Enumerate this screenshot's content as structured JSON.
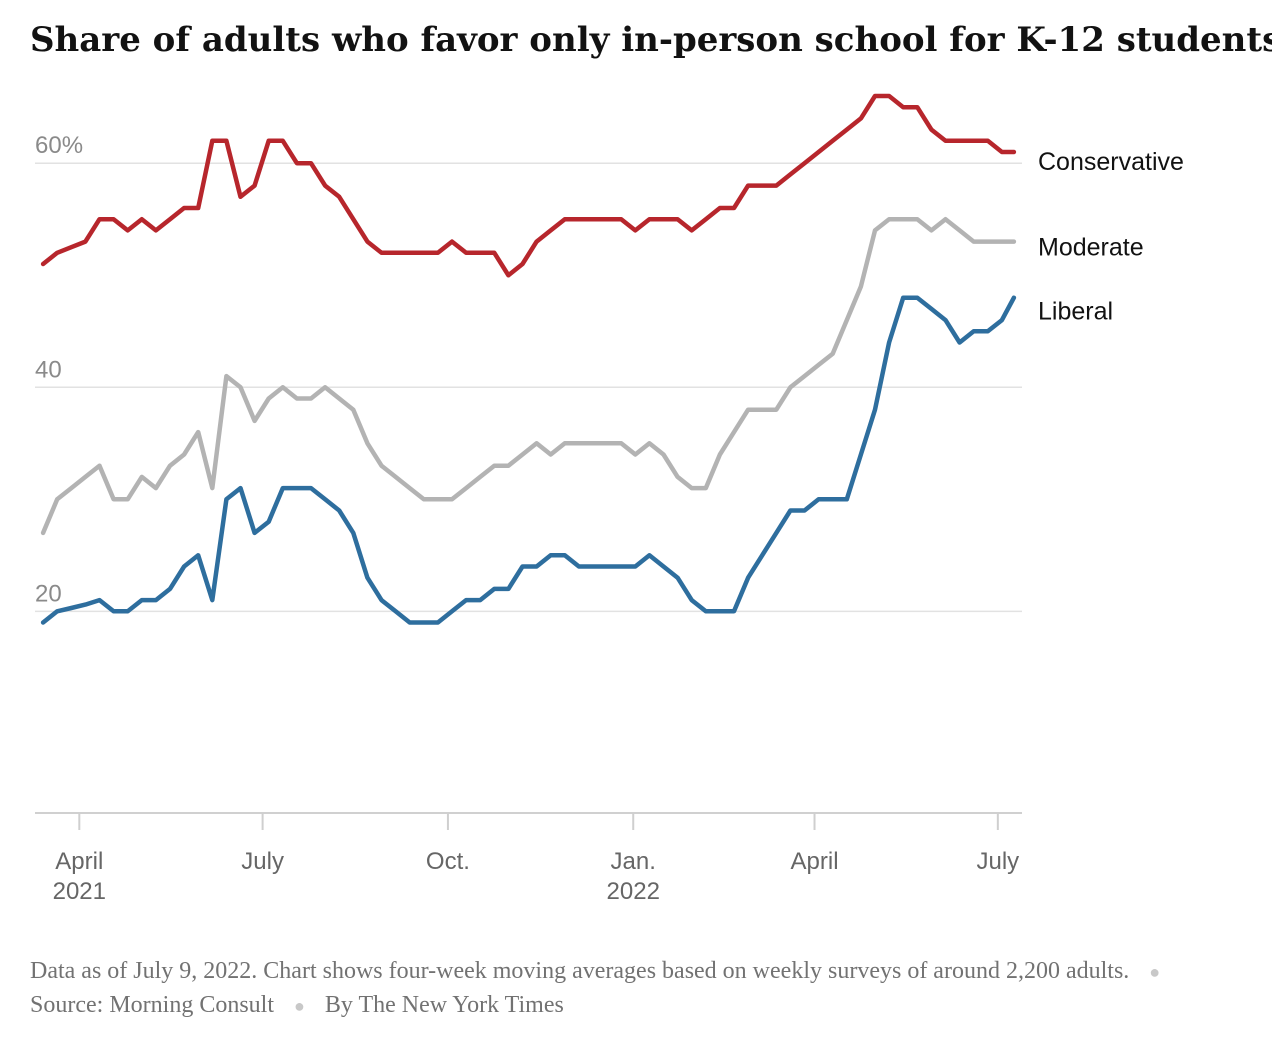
{
  "title": "Share of adults who favor only in-person school for K-12 students",
  "footnote": {
    "note": "Data as of July 9, 2022. Chart shows four-week moving averages based on weekly surveys of around 2,200 adults.",
    "source": "Source: Morning Consult",
    "byline": "By The New York Times"
  },
  "chart_data": {
    "type": "line",
    "title": "Share of adults who favor only in-person school for K-12 students",
    "xlabel": "",
    "ylabel": "",
    "ylim": [
      2,
      66
    ],
    "xlim": [
      "2021-03-10",
      "2022-07-13"
    ],
    "grid": true,
    "legend": "labels at right end of lines",
    "y_ticks": [
      {
        "value": 60,
        "label": "60%"
      },
      {
        "value": 40,
        "label": "40"
      },
      {
        "value": 20,
        "label": "20"
      }
    ],
    "x_ticks": [
      {
        "date": "2021-04-01",
        "label": "April",
        "sublabel": "2021"
      },
      {
        "date": "2021-07-01",
        "label": "July",
        "sublabel": ""
      },
      {
        "date": "2021-10-01",
        "label": "Oct.",
        "sublabel": ""
      },
      {
        "date": "2022-01-01",
        "label": "Jan.",
        "sublabel": "2022"
      },
      {
        "date": "2022-04-01",
        "label": "April",
        "sublabel": ""
      },
      {
        "date": "2022-07-01",
        "label": "July",
        "sublabel": ""
      }
    ],
    "x": [
      "2021-03-14",
      "2021-03-21",
      "2021-03-28",
      "2021-04-04",
      "2021-04-11",
      "2021-04-18",
      "2021-04-25",
      "2021-05-02",
      "2021-05-09",
      "2021-05-16",
      "2021-05-23",
      "2021-05-30",
      "2021-06-06",
      "2021-06-13",
      "2021-06-20",
      "2021-06-27",
      "2021-07-04",
      "2021-07-11",
      "2021-07-18",
      "2021-07-25",
      "2021-08-01",
      "2021-08-08",
      "2021-08-15",
      "2021-08-22",
      "2021-08-29",
      "2021-09-05",
      "2021-09-12",
      "2021-09-19",
      "2021-09-26",
      "2021-10-03",
      "2021-10-10",
      "2021-10-17",
      "2021-10-24",
      "2021-10-31",
      "2021-11-07",
      "2021-11-14",
      "2021-11-21",
      "2021-11-28",
      "2021-12-05",
      "2021-12-12",
      "2021-12-19",
      "2021-12-26",
      "2022-01-02",
      "2022-01-09",
      "2022-01-16",
      "2022-01-23",
      "2022-01-30",
      "2022-02-06",
      "2022-02-13",
      "2022-02-20",
      "2022-02-27",
      "2022-03-06",
      "2022-03-13",
      "2022-03-20",
      "2022-03-27",
      "2022-04-03",
      "2022-04-10",
      "2022-04-17",
      "2022-04-24",
      "2022-05-01",
      "2022-05-08",
      "2022-05-15",
      "2022-05-22",
      "2022-05-29",
      "2022-06-05",
      "2022-06-12",
      "2022-06-19",
      "2022-06-26",
      "2022-07-03",
      "2022-07-09"
    ],
    "series": [
      {
        "name": "Conservative",
        "color": "#b7262c",
        "values": [
          51,
          52,
          52.5,
          53,
          55,
          55,
          54,
          55,
          54,
          55,
          56,
          56,
          62,
          62,
          57,
          58,
          62,
          62,
          60,
          60,
          58,
          57,
          55,
          53,
          52,
          52,
          52,
          52,
          52,
          53,
          52,
          52,
          52,
          50,
          51,
          53,
          54,
          55,
          55,
          55,
          55,
          55,
          54,
          55,
          55,
          55,
          54,
          55,
          56,
          56,
          58,
          58,
          58,
          59,
          60,
          61,
          62,
          63,
          64,
          66,
          66,
          65,
          65,
          63,
          62,
          62,
          62,
          62,
          61,
          61
        ]
      },
      {
        "name": "Moderate",
        "color": "#b3b3b3",
        "values": [
          27,
          30,
          31,
          32,
          33,
          30,
          30,
          32,
          31,
          33,
          34,
          36,
          31,
          41,
          40,
          37,
          39,
          40,
          39,
          39,
          40,
          39,
          38,
          35,
          33,
          32,
          31,
          30,
          30,
          30,
          31,
          32,
          33,
          33,
          34,
          35,
          34,
          35,
          35,
          35,
          35,
          35,
          34,
          35,
          34,
          32,
          31,
          31,
          34,
          36,
          38,
          38,
          38,
          40,
          41,
          42,
          43,
          46,
          49,
          54,
          55,
          55,
          55,
          54,
          55,
          54,
          53,
          53,
          53,
          53
        ]
      },
      {
        "name": "Liberal",
        "color": "#2e6e9e",
        "values": [
          19,
          20,
          20.3,
          20.6,
          21,
          20,
          20,
          21,
          21,
          22,
          24,
          25,
          21,
          30,
          31,
          27,
          28,
          31,
          31,
          31,
          30,
          29,
          27,
          23,
          21,
          20,
          19,
          19,
          19,
          20,
          21,
          21,
          22,
          22,
          24,
          24,
          25,
          25,
          24,
          24,
          24,
          24,
          24,
          25,
          24,
          23,
          21,
          20,
          20,
          20,
          23,
          25,
          27,
          29,
          29,
          30,
          30,
          30,
          34,
          38,
          44,
          48,
          48,
          47,
          46,
          44,
          45,
          45,
          46,
          48
        ]
      }
    ]
  }
}
